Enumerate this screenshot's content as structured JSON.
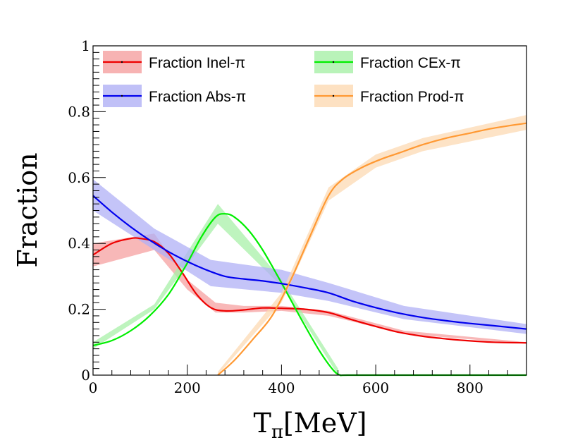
{
  "chart_data": {
    "type": "line",
    "title": "",
    "xlabel_main": "T",
    "xlabel_sub": "π",
    "xlabel_unit": "[MeV]",
    "ylabel": "Fraction",
    "xlim": [
      0,
      920
    ],
    "ylim": [
      0,
      1
    ],
    "xticks": [
      0,
      200,
      400,
      600,
      800
    ],
    "yticks": [
      0,
      0.2,
      0.4,
      0.6,
      0.8,
      1
    ],
    "ytick_labels": [
      "0",
      "0.2",
      "0.4",
      "0.6",
      "0.8",
      "1"
    ],
    "xtick_labels": [
      "0",
      "200",
      "400",
      "600",
      "800"
    ],
    "legend_position": "top",
    "series": [
      {
        "name": "Fraction Inel-π",
        "color": "#ee0000",
        "band_color": "#f5a0a0",
        "x": [
          0,
          40,
          80,
          100,
          130,
          160,
          190,
          220,
          250,
          280,
          320,
          360,
          400,
          450,
          500,
          550,
          600,
          650,
          700,
          750,
          800,
          850,
          920
        ],
        "y": [
          0.365,
          0.4,
          0.415,
          0.415,
          0.405,
          0.37,
          0.31,
          0.245,
          0.205,
          0.195,
          0.198,
          0.204,
          0.203,
          0.2,
          0.19,
          0.168,
          0.148,
          0.13,
          0.118,
          0.11,
          0.104,
          0.1,
          0.098
        ],
        "band": [
          [
            0,
            0.33,
            0.4
          ],
          [
            130,
            0.43,
            0.38
          ],
          [
            200,
            0.29,
            0.26
          ],
          [
            260,
            0.22,
            0.19
          ],
          [
            320,
            0.21,
            0.19
          ],
          [
            400,
            0.21,
            0.195
          ],
          [
            500,
            0.195,
            0.18
          ],
          [
            660,
            0.135,
            0.125
          ],
          [
            920,
            0.1,
            0.095
          ]
        ]
      },
      {
        "name": "Fraction CEx-π",
        "color": "#00ee00",
        "band_color": "#a8f0a8",
        "x": [
          0,
          40,
          80,
          120,
          160,
          200,
          230,
          260,
          280,
          300,
          330,
          360,
          400,
          440,
          480,
          510,
          525,
          540,
          660,
          700,
          800,
          920
        ],
        "y": [
          0.09,
          0.105,
          0.135,
          0.18,
          0.245,
          0.34,
          0.42,
          0.48,
          0.49,
          0.48,
          0.44,
          0.38,
          0.28,
          0.175,
          0.075,
          0.015,
          0.0,
          0.0,
          0.0,
          0.0,
          0.0,
          0.0
        ],
        "band": [
          [
            0,
            0.08,
            0.1
          ],
          [
            130,
            0.2,
            0.215
          ],
          [
            265,
            0.46,
            0.52
          ],
          [
            400,
            0.27,
            0.29
          ],
          [
            520,
            0.0,
            0.02
          ]
        ]
      },
      {
        "name": "Fraction Abs-π",
        "color": "#0000ee",
        "band_color": "#b0b0f5",
        "x": [
          0,
          40,
          80,
          120,
          160,
          200,
          240,
          280,
          320,
          360,
          400,
          450,
          500,
          550,
          600,
          650,
          700,
          750,
          800,
          850,
          920
        ],
        "y": [
          0.545,
          0.495,
          0.45,
          0.41,
          0.375,
          0.345,
          0.32,
          0.3,
          0.292,
          0.286,
          0.278,
          0.265,
          0.25,
          0.225,
          0.205,
          0.188,
          0.175,
          0.165,
          0.157,
          0.15,
          0.14
        ],
        "band": [
          [
            0,
            0.5,
            0.595
          ],
          [
            130,
            0.38,
            0.445
          ],
          [
            250,
            0.27,
            0.35
          ],
          [
            400,
            0.25,
            0.32
          ],
          [
            500,
            0.225,
            0.28
          ],
          [
            660,
            0.17,
            0.21
          ],
          [
            920,
            0.125,
            0.155
          ]
        ]
      },
      {
        "name": "Fraction Prod-π",
        "color": "#ff9933",
        "band_color": "#fcd9b3",
        "x": [
          265,
          300,
          340,
          380,
          420,
          460,
          500,
          530,
          570,
          610,
          650,
          700,
          750,
          800,
          850,
          920
        ],
        "y": [
          0.0,
          0.045,
          0.11,
          0.18,
          0.29,
          0.42,
          0.545,
          0.595,
          0.63,
          0.655,
          0.675,
          0.7,
          0.72,
          0.735,
          0.75,
          0.765
        ],
        "band": [
          [
            265,
            0.0,
            0.01
          ],
          [
            400,
            0.22,
            0.25
          ],
          [
            500,
            0.53,
            0.57
          ],
          [
            600,
            0.63,
            0.67
          ],
          [
            700,
            0.68,
            0.72
          ],
          [
            920,
            0.745,
            0.79
          ]
        ]
      }
    ],
    "legend": [
      {
        "series_index": 0,
        "label": "Fraction Inel-π"
      },
      {
        "series_index": 1,
        "label": "Fraction CEx-π"
      },
      {
        "series_index": 2,
        "label": "Fraction Abs-π"
      },
      {
        "series_index": 3,
        "label": "Fraction Prod-π"
      }
    ]
  }
}
